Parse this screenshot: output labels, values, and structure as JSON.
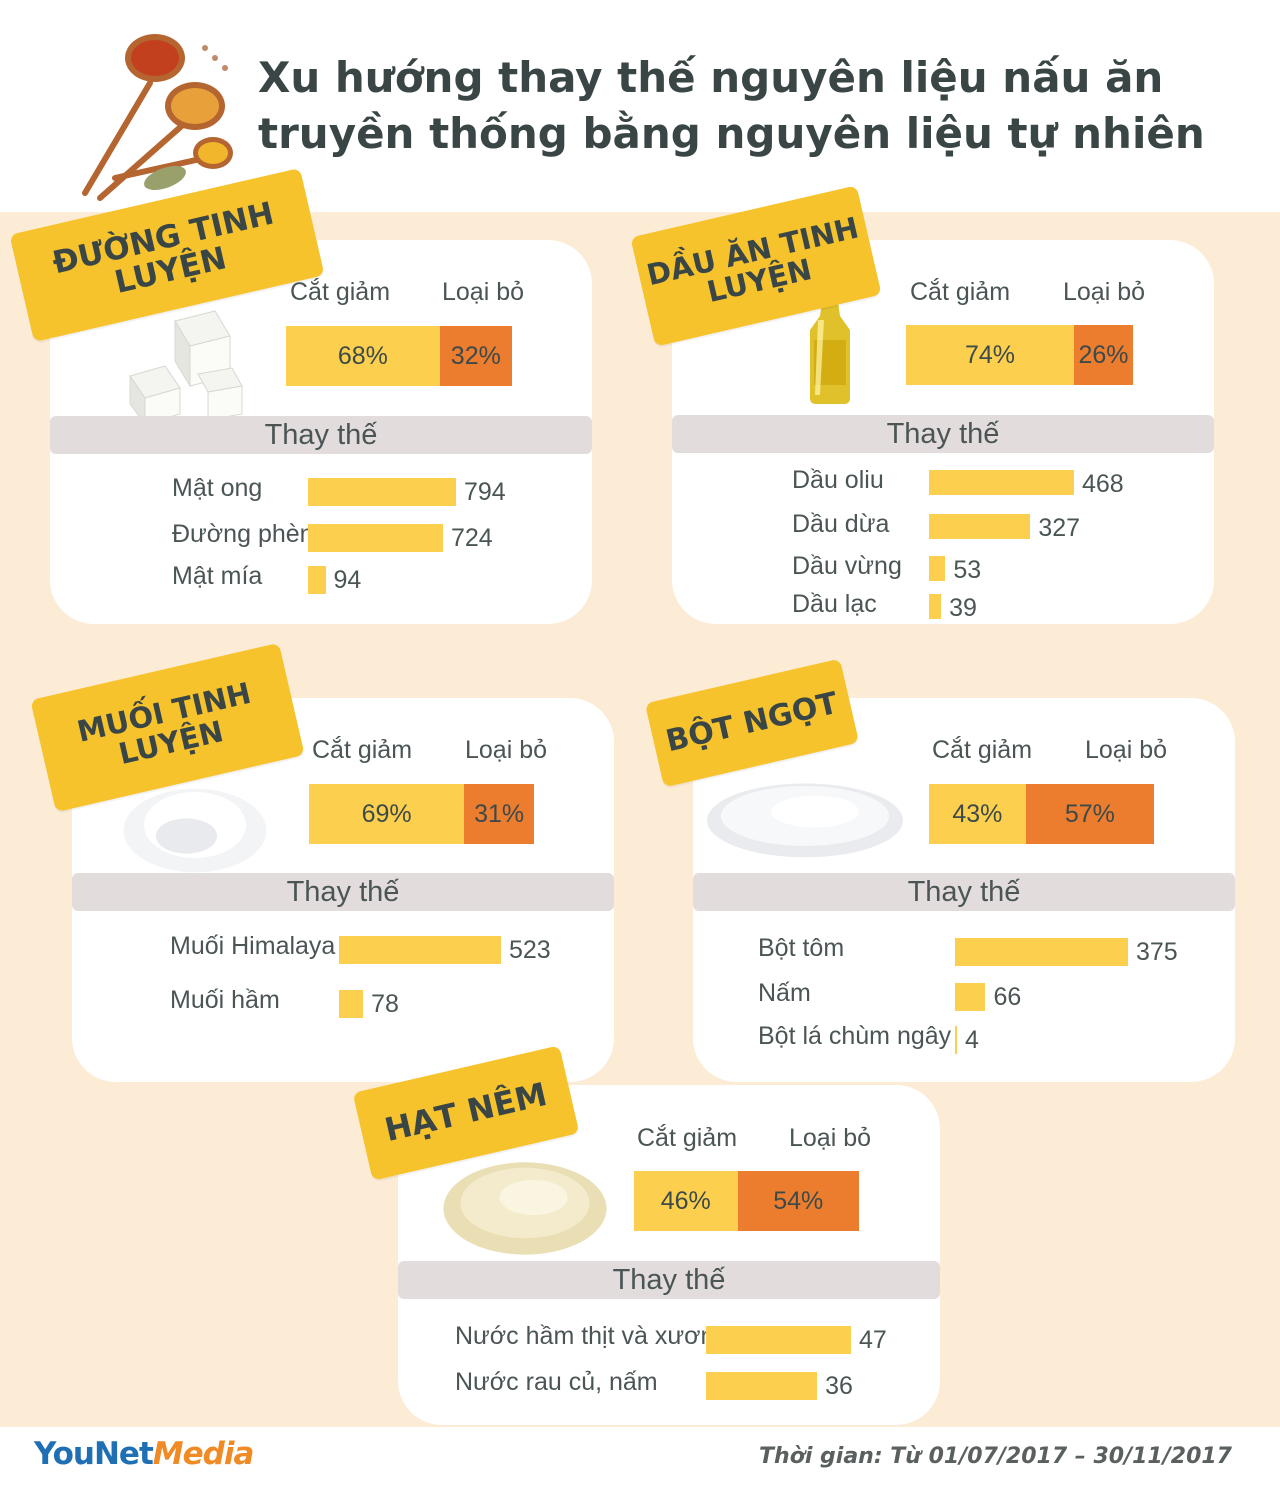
{
  "title_lines": [
    "Xu hướng thay thế nguyên liệu nấu ăn",
    "truyền thống bằng nguyên liệu tự nhiên"
  ],
  "colors": {
    "cut": "#fcd04e",
    "remove": "#ec7c2e",
    "bar": "#fcd04e",
    "banner": "#f7c32d",
    "background_band": "#fcecd5"
  },
  "chart_data": [
    {
      "type": "bar",
      "title": "Đường tinh luyện",
      "title_lines": [
        "Đường tinh",
        "luyện"
      ],
      "split_labels": [
        "Cắt giảm",
        "Loại bỏ"
      ],
      "split_values": [
        68,
        32
      ],
      "split_texts": [
        "68%",
        "32%"
      ],
      "subtitle": "Thay thế",
      "categories": [
        "Mật ong",
        "Đường phèn",
        "Mật mía"
      ],
      "values": [
        794,
        724,
        94
      ]
    },
    {
      "type": "bar",
      "title": "Dầu ăn tinh luyện",
      "title_lines": [
        "Dầu ăn tinh",
        "luyện"
      ],
      "split_labels": [
        "Cắt giảm",
        "Loại bỏ"
      ],
      "split_values": [
        74,
        26
      ],
      "split_texts": [
        "74%",
        "26%"
      ],
      "subtitle": "Thay thế",
      "categories": [
        "Dầu oliu",
        "Dầu dừa",
        "Dầu vừng",
        "Dầu lạc"
      ],
      "values": [
        468,
        327,
        53,
        39
      ]
    },
    {
      "type": "bar",
      "title": "Muối tinh luyện",
      "title_lines": [
        "Muối tinh",
        "luyện"
      ],
      "split_labels": [
        "Cắt giảm",
        "Loại bỏ"
      ],
      "split_values": [
        69,
        31
      ],
      "split_texts": [
        "69%",
        "31%"
      ],
      "subtitle": "Thay thế",
      "categories": [
        "Muối Himalaya",
        "Muối hầm"
      ],
      "values": [
        523,
        78
      ]
    },
    {
      "type": "bar",
      "title": "Bột ngọt",
      "title_lines": [
        "Bột ngọt"
      ],
      "split_labels": [
        "Cắt giảm",
        "Loại bỏ"
      ],
      "split_values": [
        43,
        57
      ],
      "split_texts": [
        "43%",
        "57%"
      ],
      "subtitle": "Thay thế",
      "categories": [
        "Bột tôm",
        "Nấm",
        "Bột lá chùm ngây"
      ],
      "values": [
        375,
        66,
        4
      ]
    },
    {
      "type": "bar",
      "title": "Hạt nêm",
      "title_lines": [
        "Hạt nêm"
      ],
      "split_labels": [
        "Cắt giảm",
        "Loại bỏ"
      ],
      "split_values": [
        46,
        54
      ],
      "split_texts": [
        "46%",
        "54%"
      ],
      "subtitle": "Thay thế",
      "categories": [
        "Nước hầm thịt và xương",
        "Nước rau củ, nấm"
      ],
      "values": [
        47,
        36
      ]
    }
  ],
  "footer": {
    "logo_part1": "YouNet",
    "logo_part2": "Media",
    "date": "Thời gian: Từ 01/07/2017 – 30/11/2017"
  }
}
